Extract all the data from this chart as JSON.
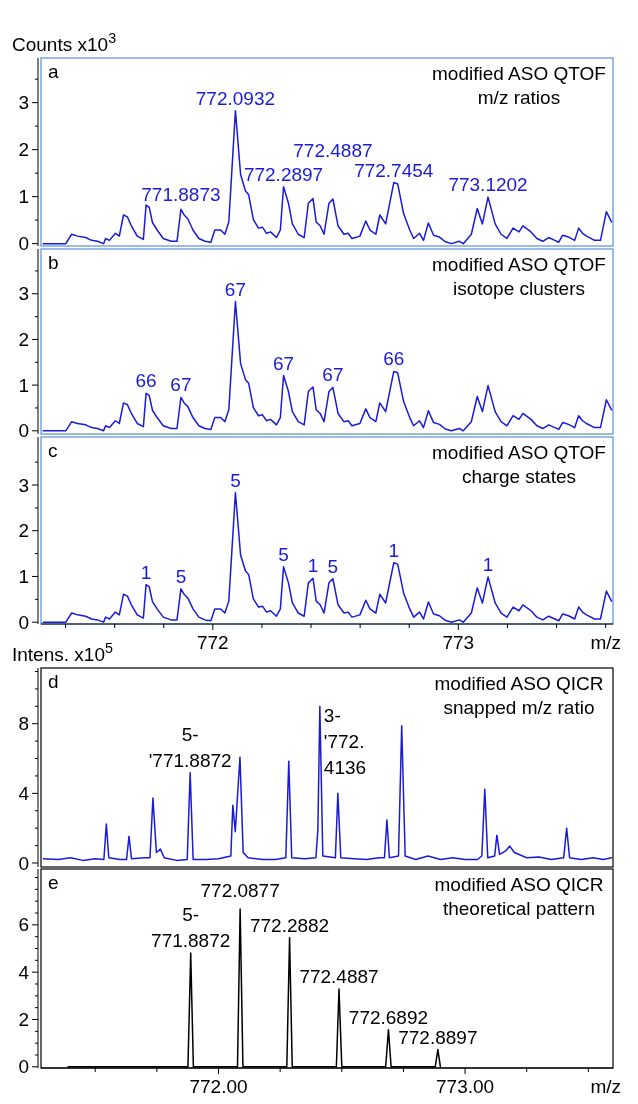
{
  "chart_data": [
    {
      "type": "line",
      "title": "modified ASO QTOF\nm/z ratios",
      "ylabel": "Counts x10$^{3}$",
      "tick_labels": "y",
      "xlim": [
        771.3,
        773.63
      ],
      "ylim": [
        -0.05,
        3.95
      ],
      "yticks": [
        0,
        {
          "value": 0.5,
          "label": null
        },
        1,
        {
          "value": 1.5,
          "label": null
        },
        2,
        {
          "value": 2.5,
          "label": null
        },
        3,
        {
          "value": 3.5,
          "label": null
        }
      ],
      "annotations": [
        "a",
        {
          "text": "771.8873",
          "x": 771.87,
          "y": 0.73
        },
        {
          "text": "772.0932",
          "x": 772.092,
          "y": 2.83
        },
        {
          "text": "772.2897",
          "x": 772.288,
          "y": 1.21
        },
        {
          "text": "772.4887",
          "x": 772.489,
          "y": 0.95
        },
        {
          "text": "772.7454",
          "x": 772.737,
          "y": 1.3
        },
        {
          "text": "773.1202",
          "x": 773.121,
          "y": 0.99
        }
      ],
      "series": [
        {
          "color": "#1a1ad8",
          "x": [
            771.309,
            771.352,
            771.401,
            771.425,
            771.449,
            771.482,
            771.506,
            771.53,
            771.555,
            771.563,
            771.579,
            771.603,
            771.619,
            771.636,
            771.652,
            771.668,
            771.692,
            771.717,
            771.728,
            771.741,
            771.754,
            771.773,
            771.798,
            771.83,
            771.854,
            771.87,
            771.883,
            771.898,
            771.919,
            771.943,
            771.968,
            771.992,
            772.008,
            772.032,
            772.049,
            772.065,
            772.092,
            772.113,
            772.133,
            772.146,
            772.165,
            772.186,
            772.202,
            772.219,
            772.235,
            772.259,
            772.275,
            772.288,
            772.308,
            772.324,
            772.348,
            772.372,
            772.389,
            772.408,
            772.421,
            772.437,
            772.453,
            772.473,
            772.489,
            772.51,
            772.534,
            772.551,
            772.567,
            772.599,
            772.623,
            772.64,
            772.664,
            772.68,
            772.704,
            772.737,
            772.753,
            772.777,
            772.802,
            772.818,
            772.842,
            772.858,
            772.878,
            772.899,
            772.923,
            772.947,
            772.972,
            773.004,
            773.02,
            773.053,
            773.077,
            773.098,
            773.121,
            773.15,
            773.174,
            773.198,
            773.223,
            773.247,
            773.263,
            773.296,
            773.32,
            773.344,
            773.368,
            773.393,
            773.409,
            773.425,
            773.449,
            773.474,
            773.49,
            773.506,
            773.522,
            773.555,
            773.579,
            773.603,
            773.624
          ],
          "values": [
            0,
            0,
            0,
            0.2,
            0.16,
            0.13,
            0.07,
            0.05,
            0,
            0.11,
            0.07,
            0.22,
            0.16,
            0.61,
            0.57,
            0.38,
            0.16,
            0.09,
            0.82,
            0.77,
            0.45,
            0.29,
            0.11,
            0.05,
            0.05,
            0.73,
            0.61,
            0.53,
            0.29,
            0.11,
            0.05,
            0.03,
            0.29,
            0.29,
            0.2,
            0.46,
            2.83,
            1.47,
            1.12,
            1.04,
            0.51,
            0.33,
            0.35,
            0.22,
            0.25,
            0.13,
            0.29,
            1.21,
            0.86,
            0.42,
            0.2,
            0.13,
            0.86,
            0.96,
            0.46,
            0.38,
            0.2,
            0.86,
            0.95,
            0.38,
            0.2,
            0.22,
            0.11,
            0.16,
            0.48,
            0.29,
            0.2,
            0.61,
            0.42,
            1.3,
            1.27,
            0.64,
            0.29,
            0.11,
            0.22,
            0.07,
            0.44,
            0.18,
            0.14,
            0.04,
            0,
            0.05,
            0,
            0.2,
            0.75,
            0.42,
            0.99,
            0.42,
            0.2,
            0.11,
            0.33,
            0.25,
            0.38,
            0.25,
            0.11,
            0.05,
            0.13,
            0.07,
            0.03,
            0.18,
            0.14,
            0.07,
            0.33,
            0.22,
            0.16,
            0.07,
            0.07,
            0.68,
            0.46
          ]
        }
      ]
    },
    {
      "type": "line",
      "title": "modified ASO QTOF\nisotope clusters",
      "tick_labels": "y",
      "xlim": [
        771.3,
        773.63
      ],
      "ylim": [
        -0.07,
        3.98
      ],
      "yticks": [
        0,
        {
          "value": 0.5,
          "label": null
        },
        1,
        {
          "value": 1.5,
          "label": null
        },
        2,
        {
          "value": 2.5,
          "label": null
        },
        3,
        {
          "value": 3.5,
          "label": null
        }
      ],
      "annotations": [
        "b",
        {
          "text": "66",
          "x": 771.728,
          "y": 0.82
        },
        {
          "text": "67",
          "x": 771.87,
          "y": 0.73
        },
        {
          "text": "67",
          "x": 772.092,
          "y": 2.83
        },
        {
          "text": "67",
          "x": 772.288,
          "y": 1.21
        },
        {
          "text": "67",
          "x": 772.489,
          "y": 0.95
        },
        {
          "text": "66",
          "x": 772.737,
          "y": 1.3
        }
      ],
      "series": [
        {
          "color": "#1a1ad8",
          "x": [
            771.309,
            771.352,
            771.401,
            771.425,
            771.449,
            771.482,
            771.506,
            771.53,
            771.555,
            771.563,
            771.579,
            771.603,
            771.619,
            771.636,
            771.652,
            771.668,
            771.692,
            771.717,
            771.728,
            771.741,
            771.754,
            771.773,
            771.798,
            771.83,
            771.854,
            771.87,
            771.883,
            771.898,
            771.919,
            771.943,
            771.968,
            771.992,
            772.008,
            772.032,
            772.049,
            772.065,
            772.092,
            772.113,
            772.133,
            772.146,
            772.165,
            772.186,
            772.202,
            772.219,
            772.235,
            772.259,
            772.275,
            772.288,
            772.308,
            772.324,
            772.348,
            772.372,
            772.389,
            772.408,
            772.421,
            772.437,
            772.453,
            772.473,
            772.489,
            772.51,
            772.534,
            772.551,
            772.567,
            772.599,
            772.623,
            772.64,
            772.664,
            772.68,
            772.704,
            772.737,
            772.753,
            772.777,
            772.802,
            772.818,
            772.842,
            772.858,
            772.878,
            772.899,
            772.923,
            772.947,
            772.972,
            773.004,
            773.02,
            773.053,
            773.077,
            773.098,
            773.121,
            773.15,
            773.174,
            773.198,
            773.223,
            773.247,
            773.263,
            773.296,
            773.32,
            773.344,
            773.368,
            773.393,
            773.409,
            773.425,
            773.449,
            773.474,
            773.49,
            773.506,
            773.522,
            773.555,
            773.579,
            773.603,
            773.624
          ],
          "values": [
            0,
            0,
            0,
            0.2,
            0.16,
            0.13,
            0.07,
            0.05,
            0,
            0.11,
            0.07,
            0.22,
            0.16,
            0.61,
            0.57,
            0.38,
            0.16,
            0.09,
            0.82,
            0.77,
            0.45,
            0.29,
            0.11,
            0.05,
            0.05,
            0.73,
            0.61,
            0.53,
            0.29,
            0.11,
            0.05,
            0.03,
            0.29,
            0.29,
            0.2,
            0.46,
            2.83,
            1.47,
            1.12,
            1.04,
            0.51,
            0.33,
            0.35,
            0.22,
            0.25,
            0.13,
            0.29,
            1.21,
            0.86,
            0.42,
            0.2,
            0.13,
            0.86,
            0.96,
            0.46,
            0.38,
            0.2,
            0.86,
            0.95,
            0.38,
            0.2,
            0.22,
            0.11,
            0.16,
            0.48,
            0.29,
            0.2,
            0.61,
            0.42,
            1.3,
            1.27,
            0.64,
            0.29,
            0.11,
            0.22,
            0.07,
            0.44,
            0.18,
            0.14,
            0.04,
            0,
            0.05,
            0,
            0.2,
            0.75,
            0.42,
            0.99,
            0.42,
            0.2,
            0.11,
            0.33,
            0.25,
            0.38,
            0.25,
            0.11,
            0.05,
            0.13,
            0.07,
            0.03,
            0.18,
            0.14,
            0.07,
            0.33,
            0.22,
            0.16,
            0.07,
            0.07,
            0.68,
            0.46
          ]
        }
      ]
    },
    {
      "type": "line",
      "title": "modified ASO QTOF\ncharge states",
      "xlabel": "m/z",
      "xlim": [
        771.3,
        773.63
      ],
      "ylim": [
        -0.04,
        4.05
      ],
      "xticks": [
        {
          "value": 771.4,
          "label": null
        },
        {
          "value": 771.6,
          "label": null
        },
        {
          "value": 771.8,
          "label": null
        },
        772,
        {
          "value": 772.2,
          "label": null
        },
        {
          "value": 772.4,
          "label": null
        },
        {
          "value": 772.6,
          "label": null
        },
        {
          "value": 772.8,
          "label": null
        },
        773,
        {
          "value": 773.2,
          "label": null
        },
        {
          "value": 773.4,
          "label": null
        },
        {
          "value": 773.6,
          "label": null
        }
      ],
      "yticks": [
        0,
        {
          "value": 0.5,
          "label": null
        },
        1,
        {
          "value": 1.5,
          "label": null
        },
        2,
        {
          "value": 2.5,
          "label": null
        },
        3,
        {
          "value": 3.5,
          "label": null
        }
      ],
      "annotations": [
        "c",
        {
          "text": "1",
          "x": 771.728,
          "y": 0.82
        },
        {
          "text": "5",
          "x": 771.87,
          "y": 0.73
        },
        {
          "text": "5",
          "x": 772.092,
          "y": 2.83
        },
        {
          "text": "5",
          "x": 772.288,
          "y": 1.21
        },
        {
          "text": "1",
          "x": 772.408,
          "y": 0.96
        },
        {
          "text": "5",
          "x": 772.489,
          "y": 0.95
        },
        {
          "text": "1",
          "x": 772.737,
          "y": 1.3
        },
        {
          "text": "1",
          "x": 773.121,
          "y": 0.99
        }
      ],
      "series": [
        {
          "color": "#1a1ad8",
          "x": [
            771.309,
            771.352,
            771.401,
            771.425,
            771.449,
            771.482,
            771.506,
            771.53,
            771.555,
            771.563,
            771.579,
            771.603,
            771.619,
            771.636,
            771.652,
            771.668,
            771.692,
            771.717,
            771.728,
            771.741,
            771.754,
            771.773,
            771.798,
            771.83,
            771.854,
            771.87,
            771.883,
            771.898,
            771.919,
            771.943,
            771.968,
            771.992,
            772.008,
            772.032,
            772.049,
            772.065,
            772.092,
            772.113,
            772.133,
            772.146,
            772.165,
            772.186,
            772.202,
            772.219,
            772.235,
            772.259,
            772.275,
            772.288,
            772.308,
            772.324,
            772.348,
            772.372,
            772.389,
            772.408,
            772.421,
            772.437,
            772.453,
            772.473,
            772.489,
            772.51,
            772.534,
            772.551,
            772.567,
            772.599,
            772.623,
            772.64,
            772.664,
            772.68,
            772.704,
            772.737,
            772.753,
            772.777,
            772.802,
            772.818,
            772.842,
            772.858,
            772.878,
            772.899,
            772.923,
            772.947,
            772.972,
            773.004,
            773.02,
            773.053,
            773.077,
            773.098,
            773.121,
            773.15,
            773.174,
            773.198,
            773.223,
            773.247,
            773.263,
            773.296,
            773.32,
            773.344,
            773.368,
            773.393,
            773.409,
            773.425,
            773.449,
            773.474,
            773.49,
            773.506,
            773.522,
            773.555,
            773.579,
            773.603,
            773.624
          ],
          "values": [
            0,
            0,
            0,
            0.2,
            0.16,
            0.13,
            0.07,
            0.05,
            0,
            0.11,
            0.07,
            0.22,
            0.16,
            0.61,
            0.57,
            0.38,
            0.16,
            0.09,
            0.82,
            0.77,
            0.45,
            0.29,
            0.11,
            0.05,
            0.05,
            0.73,
            0.61,
            0.53,
            0.29,
            0.11,
            0.05,
            0.03,
            0.29,
            0.29,
            0.2,
            0.46,
            2.83,
            1.47,
            1.12,
            1.04,
            0.51,
            0.33,
            0.35,
            0.22,
            0.25,
            0.13,
            0.29,
            1.21,
            0.86,
            0.42,
            0.2,
            0.13,
            0.86,
            0.96,
            0.46,
            0.38,
            0.2,
            0.86,
            0.95,
            0.38,
            0.2,
            0.22,
            0.11,
            0.16,
            0.48,
            0.29,
            0.2,
            0.61,
            0.42,
            1.3,
            1.27,
            0.64,
            0.29,
            0.11,
            0.22,
            0.07,
            0.44,
            0.18,
            0.14,
            0.04,
            0,
            0.05,
            0,
            0.2,
            0.75,
            0.42,
            0.99,
            0.42,
            0.2,
            0.11,
            0.33,
            0.25,
            0.38,
            0.25,
            0.11,
            0.05,
            0.13,
            0.07,
            0.03,
            0.18,
            0.14,
            0.07,
            0.33,
            0.22,
            0.16,
            0.07,
            0.07,
            0.68,
            0.46
          ]
        }
      ]
    },
    {
      "type": "line",
      "title": "modified ASO QICR\nsnapped m/z ratio",
      "ylabel": "Intens. x10$^{5}$",
      "tick_labels": "y",
      "xlim": [
        771.28,
        773.6
      ],
      "ylim": [
        -0.23,
        11.2
      ],
      "yticks": [
        0,
        {
          "value": 1,
          "label": null
        },
        {
          "value": 2,
          "label": null
        },
        {
          "value": 3,
          "label": null
        },
        4,
        {
          "value": 5,
          "label": null
        },
        {
          "value": 6,
          "label": null
        },
        {
          "value": 7,
          "label": null
        },
        8,
        {
          "value": 9,
          "label": null
        },
        {
          "value": 10,
          "label": null
        },
        {
          "value": 11,
          "label": null
        }
      ],
      "annotations": [
        "d",
        {
          "text": "5-\n'771.8872",
          "x": 771.885,
          "y": 5.18
        },
        {
          "text": "3-\n'772.\n4136",
          "x": 772.411,
          "y": 8.99
        }
      ],
      "series": [
        {
          "color": "#1a1ad8",
          "x": [
            771.29,
            771.35,
            771.4,
            771.45,
            771.5,
            771.535,
            771.545,
            771.555,
            771.6,
            771.627,
            771.637,
            771.647,
            771.7,
            771.722,
            771.734,
            771.748,
            771.764,
            771.78,
            771.83,
            771.873,
            771.885,
            771.897,
            771.95,
            772.0,
            772.05,
            772.058,
            772.068,
            772.087,
            772.1,
            772.12,
            772.18,
            772.23,
            772.273,
            772.285,
            772.297,
            772.35,
            772.395,
            772.403,
            772.411,
            772.423,
            772.474,
            772.484,
            772.496,
            772.55,
            772.6,
            772.65,
            772.673,
            772.683,
            772.693,
            772.73,
            772.743,
            772.757,
            772.8,
            772.85,
            772.9,
            772.95,
            773.0,
            773.05,
            773.068,
            773.08,
            773.092,
            773.12,
            773.129,
            773.14,
            773.165,
            773.181,
            773.2,
            773.25,
            773.3,
            773.35,
            773.4,
            773.412,
            773.424,
            773.47,
            773.52,
            773.56,
            773.594
          ],
          "values": [
            0.25,
            0.2,
            0.3,
            0.15,
            0.25,
            0.2,
            2.24,
            0.3,
            0.2,
            0.2,
            1.54,
            0.25,
            0.3,
            0.3,
            3.73,
            0.6,
            0.8,
            0.3,
            0.15,
            0.2,
            5.18,
            0.2,
            0.2,
            0.25,
            0.4,
            3.32,
            1.8,
            6.08,
            0.6,
            0.3,
            0.2,
            0.2,
            0.3,
            5.85,
            0.3,
            0.25,
            0.3,
            1.9,
            8.99,
            0.4,
            0.3,
            4.0,
            0.3,
            0.25,
            0.2,
            0.3,
            0.3,
            2.47,
            0.3,
            0.4,
            7.88,
            0.4,
            0.2,
            0.4,
            0.2,
            0.3,
            0.2,
            0.2,
            0.4,
            4.24,
            0.3,
            0.4,
            1.6,
            0.5,
            0.7,
            0.97,
            0.6,
            0.3,
            0.35,
            0.2,
            0.3,
            2.0,
            0.3,
            0.2,
            0.3,
            0.2,
            0.3
          ]
        }
      ]
    },
    {
      "type": "line",
      "title": "modified ASO QICR\ntheoretical pattern",
      "xlabel": "m/z",
      "xlim": [
        771.28,
        773.6
      ],
      "ylim": [
        -0.05,
        8.36
      ],
      "xticks": [
        {
          "value": 771.5,
          "label": null
        },
        {
          "value": 771.75,
          "label": null
        },
        {
          "value": 772,
          "label": "772.00"
        },
        {
          "value": 772.25,
          "label": null
        },
        {
          "value": 772.5,
          "label": null
        },
        {
          "value": 772.75,
          "label": null
        },
        {
          "value": 773,
          "label": "773.00"
        },
        {
          "value": 773.25,
          "label": null
        },
        {
          "value": 773.5,
          "label": null
        }
      ],
      "yticks": [
        0,
        {
          "value": 0.5,
          "label": null
        },
        {
          "value": 1,
          "label": null
        },
        {
          "value": 1.5,
          "label": null
        },
        2,
        {
          "value": 2.5,
          "label": null
        },
        {
          "value": 3,
          "label": null
        },
        {
          "value": 3.5,
          "label": null
        },
        4,
        {
          "value": 4.5,
          "label": null
        },
        {
          "value": 5,
          "label": null
        },
        {
          "value": 5.5,
          "label": null
        },
        6,
        {
          "value": 6.5,
          "label": null
        },
        {
          "value": 7,
          "label": null
        },
        {
          "value": 7.5,
          "label": null
        },
        {
          "value": 8,
          "label": null
        }
      ],
      "annotations": [
        "e",
        {
          "text": "5-\n771.8872",
          "x": 771.8872,
          "y": 4.81
        },
        {
          "text": "772.0877",
          "x": 772.0877,
          "y": 6.67
        },
        {
          "text": "772.2882",
          "x": 772.2882,
          "y": 5.45
        },
        {
          "text": "772.4887",
          "x": 772.4887,
          "y": 3.29
        },
        {
          "text": "772.6892",
          "x": 772.6892,
          "y": 1.57
        },
        {
          "text": "772.8897",
          "x": 772.8897,
          "y": 0.73
        }
      ],
      "series": [
        {
          "color": "#000000",
          "x": [
            771.39,
            771.876,
            771.8872,
            771.898,
            772.077,
            772.0877,
            772.099,
            772.277,
            772.2882,
            772.299,
            772.478,
            772.4887,
            772.5,
            772.678,
            772.6892,
            772.7,
            772.879,
            772.8897,
            772.9
          ],
          "values": [
            0,
            0,
            4.81,
            0,
            0,
            6.67,
            0,
            0,
            5.45,
            0,
            0,
            3.29,
            0,
            0,
            1.57,
            0,
            0,
            0.73,
            0
          ]
        }
      ]
    }
  ]
}
